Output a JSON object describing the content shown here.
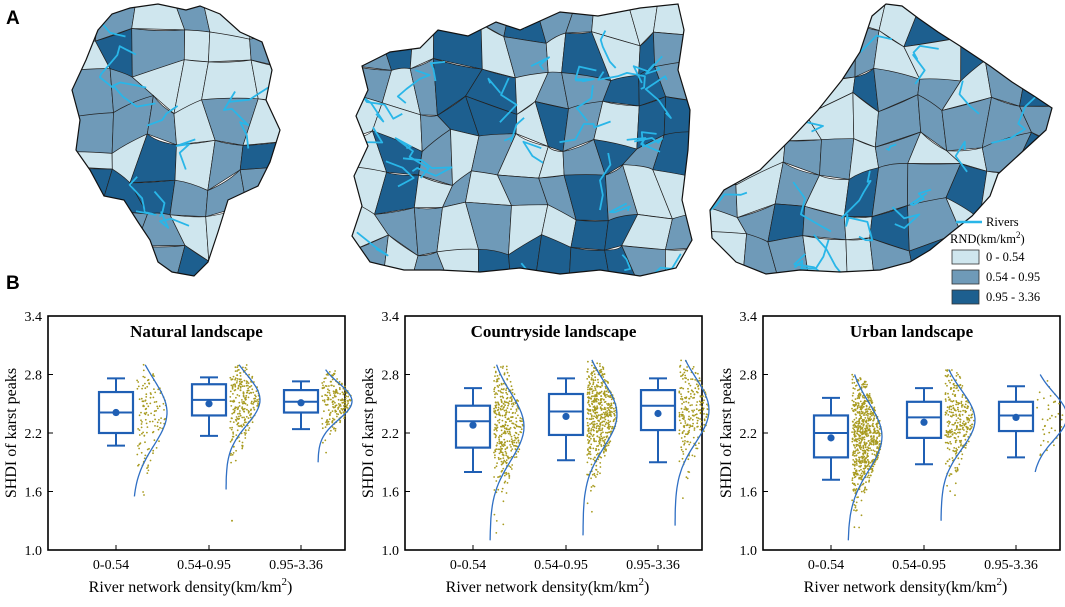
{
  "panel_a": {
    "letter": "A",
    "legend": {
      "rivers_label": "Rivers",
      "title_prefix": "RND(km/km",
      "title_sup": "2",
      "title_suffix": ")",
      "classes": [
        {
          "label": "0 - 0.54",
          "color": "#cfe6ee"
        },
        {
          "label": "0.54 - 0.95",
          "color": "#6f9ab8"
        },
        {
          "label": "0.95 - 3.36",
          "color": "#1d5f8f"
        }
      ],
      "river_color": "#29b6e8"
    },
    "maps": [
      {
        "name": "natural-landscape-watershed"
      },
      {
        "name": "countryside-landscape-watershed"
      },
      {
        "name": "urban-landscape-watershed"
      }
    ]
  },
  "panel_b": {
    "letter": "B",
    "box_color": "#1f5fb4",
    "point_color": "#a89b20",
    "curve_color": "#2f6fc4"
  },
  "chart_data": [
    {
      "type": "box",
      "title": "Natural landscape",
      "ylabel": "SHDI of karst peaks",
      "xlabel_prefix": "River network density(km/km",
      "xlabel_sup": "2",
      "xlabel_suffix": ")",
      "categories": [
        "0-0.54",
        "0.54-0.95",
        "0.95-3.36"
      ],
      "ylim": [
        1.0,
        3.4
      ],
      "yticks": [
        "1.0",
        "1.6",
        "2.2",
        "2.8",
        "3.4"
      ],
      "boxes": [
        {
          "min": 2.07,
          "q1": 2.2,
          "median": 2.41,
          "q3": 2.62,
          "max": 2.76,
          "mean": 2.41,
          "range": [
            1.55,
            2.9
          ],
          "n": 130,
          "outliers": []
        },
        {
          "min": 2.17,
          "q1": 2.38,
          "median": 2.54,
          "q3": 2.7,
          "max": 2.77,
          "mean": 2.5,
          "range": [
            1.62,
            2.9
          ],
          "n": 260,
          "outliers": [
            1.3
          ]
        },
        {
          "min": 2.24,
          "q1": 2.41,
          "median": 2.52,
          "q3": 2.64,
          "max": 2.73,
          "mean": 2.51,
          "range": [
            1.9,
            2.85
          ],
          "n": 200,
          "outliers": []
        }
      ]
    },
    {
      "type": "box",
      "title": "Countryside landscape",
      "ylabel": "SHDI of karst peaks",
      "xlabel_prefix": "River network density(km/km",
      "xlabel_sup": "2",
      "xlabel_suffix": ")",
      "categories": [
        "0-0.54",
        "0.54-0.95",
        "0.95-3.36"
      ],
      "ylim": [
        1.0,
        3.4
      ],
      "yticks": [
        "1.0",
        "1.6",
        "2.2",
        "2.8",
        "3.4"
      ],
      "boxes": [
        {
          "min": 1.8,
          "q1": 2.05,
          "median": 2.32,
          "q3": 2.48,
          "max": 2.66,
          "mean": 2.28,
          "range": [
            1.1,
            2.9
          ],
          "n": 380,
          "outliers": []
        },
        {
          "min": 1.92,
          "q1": 2.18,
          "median": 2.42,
          "q3": 2.6,
          "max": 2.76,
          "mean": 2.37,
          "range": [
            1.15,
            2.95
          ],
          "n": 520,
          "outliers": []
        },
        {
          "min": 1.9,
          "q1": 2.23,
          "median": 2.48,
          "q3": 2.64,
          "max": 2.76,
          "mean": 2.4,
          "range": [
            1.25,
            2.95
          ],
          "n": 230,
          "outliers": []
        }
      ]
    },
    {
      "type": "box",
      "title": "Urban landscape",
      "ylabel": "SHDI of karst peaks",
      "xlabel_prefix": "River network density(km/km",
      "xlabel_sup": "2",
      "xlabel_suffix": ")",
      "categories": [
        "0-0.54",
        "0.54-0.95",
        "0.95-3.36"
      ],
      "ylim": [
        1.0,
        3.4
      ],
      "yticks": [
        "1.0",
        "1.6",
        "2.2",
        "2.8",
        "3.4"
      ],
      "boxes": [
        {
          "min": 1.72,
          "q1": 1.95,
          "median": 2.2,
          "q3": 2.38,
          "max": 2.56,
          "mean": 2.15,
          "range": [
            1.1,
            2.8
          ],
          "n": 700,
          "outliers": []
        },
        {
          "min": 1.88,
          "q1": 2.15,
          "median": 2.36,
          "q3": 2.52,
          "max": 2.66,
          "mean": 2.31,
          "range": [
            1.3,
            2.85
          ],
          "n": 300,
          "outliers": []
        },
        {
          "min": 1.95,
          "q1": 2.22,
          "median": 2.38,
          "q3": 2.52,
          "max": 2.68,
          "mean": 2.36,
          "range": [
            1.8,
            2.8
          ],
          "n": 40,
          "outliers": []
        }
      ]
    }
  ]
}
